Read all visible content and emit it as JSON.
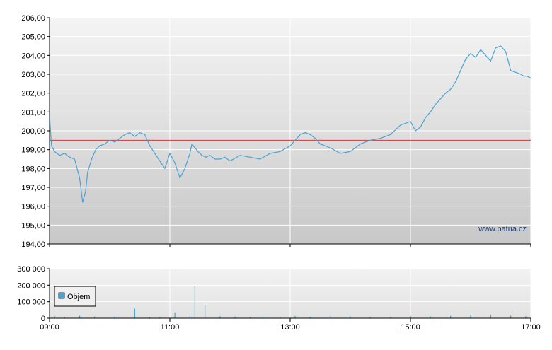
{
  "chart_data": [
    {
      "type": "line",
      "x_start": "09:00",
      "x_end": "17:00",
      "xticks": [
        "09:00",
        "11:00",
        "13:00",
        "15:00",
        "17:00"
      ],
      "ylim": [
        194,
        206
      ],
      "yticks": [
        "194,00",
        "195,00",
        "196,00",
        "197,00",
        "198,00",
        "199,00",
        "200,00",
        "201,00",
        "202,00",
        "203,00",
        "204,00",
        "205,00",
        "206,00"
      ],
      "reference_line": 199.5,
      "watermark": "www.patria.cz",
      "series": [
        {
          "x": [
            "09:00",
            "09:02",
            "09:05",
            "09:10",
            "09:15",
            "09:20",
            "09:25",
            "09:30",
            "09:33",
            "09:36",
            "09:38",
            "09:42",
            "09:46",
            "09:50",
            "09:55",
            "10:00",
            "10:05",
            "10:10",
            "10:15",
            "10:20",
            "10:25",
            "10:30",
            "10:35",
            "10:40",
            "10:45",
            "10:50",
            "10:55",
            "11:00",
            "11:05",
            "11:10",
            "11:15",
            "11:20",
            "11:22",
            "11:25",
            "11:28",
            "11:32",
            "11:36",
            "11:40",
            "11:45",
            "11:50",
            "11:55",
            "12:00",
            "12:10",
            "12:20",
            "12:30",
            "12:40",
            "12:50",
            "13:00",
            "13:10",
            "13:15",
            "13:20",
            "13:25",
            "13:30",
            "13:40",
            "13:50",
            "14:00",
            "14:10",
            "14:20",
            "14:30",
            "14:40",
            "14:50",
            "15:00",
            "15:05",
            "15:10",
            "15:15",
            "15:20",
            "15:25",
            "15:30",
            "15:35",
            "15:40",
            "15:45",
            "15:50",
            "15:55",
            "16:00",
            "16:05",
            "16:10",
            "16:15",
            "16:20",
            "16:25",
            "16:30",
            "16:35",
            "16:40",
            "16:45",
            "16:50",
            "16:53",
            "16:56",
            "17:00"
          ],
          "values": [
            200.8,
            199.2,
            198.9,
            198.7,
            198.8,
            198.6,
            198.5,
            197.5,
            196.2,
            196.8,
            197.8,
            198.5,
            199.0,
            199.2,
            199.3,
            199.5,
            199.4,
            199.6,
            199.8,
            199.9,
            199.7,
            199.9,
            199.8,
            199.2,
            198.8,
            198.4,
            198.0,
            198.8,
            198.3,
            197.5,
            198.0,
            198.8,
            199.3,
            199.1,
            198.9,
            198.7,
            198.6,
            198.7,
            198.5,
            198.5,
            198.6,
            198.4,
            198.7,
            198.6,
            198.5,
            198.8,
            198.9,
            199.2,
            199.8,
            199.9,
            199.8,
            199.6,
            199.3,
            199.1,
            198.8,
            198.9,
            199.3,
            199.5,
            199.6,
            199.8,
            200.3,
            200.5,
            200.0,
            200.2,
            200.7,
            201.0,
            201.4,
            201.7,
            202.0,
            202.2,
            202.6,
            203.2,
            203.8,
            204.1,
            203.9,
            204.3,
            204.0,
            203.7,
            204.4,
            204.5,
            204.2,
            203.2,
            203.1,
            203.0,
            202.9,
            202.9,
            202.8
          ]
        }
      ]
    },
    {
      "type": "bar",
      "ylim": [
        0,
        300000
      ],
      "yticks": [
        "0",
        "100 000",
        "200 000",
        "300 000"
      ],
      "legend": "Objem",
      "series": [
        {
          "name": "Objem",
          "x": [
            "09:05",
            "09:15",
            "09:30",
            "09:45",
            "10:05",
            "10:25",
            "10:40",
            "10:50",
            "11:05",
            "11:20",
            "11:25",
            "11:35",
            "11:50",
            "12:05",
            "12:20",
            "12:35",
            "12:50",
            "13:05",
            "13:20",
            "13:40",
            "14:00",
            "14:20",
            "14:40",
            "15:00",
            "15:20",
            "15:40",
            "16:00",
            "16:20",
            "16:40",
            "16:55"
          ],
          "values": [
            12000,
            8000,
            15000,
            10000,
            9000,
            58000,
            7000,
            9000,
            35000,
            14000,
            200000,
            80000,
            12000,
            10000,
            8000,
            9000,
            7000,
            13000,
            9000,
            11000,
            10000,
            9000,
            8000,
            12000,
            10000,
            14000,
            18000,
            22000,
            16000,
            12000
          ]
        }
      ]
    }
  ]
}
